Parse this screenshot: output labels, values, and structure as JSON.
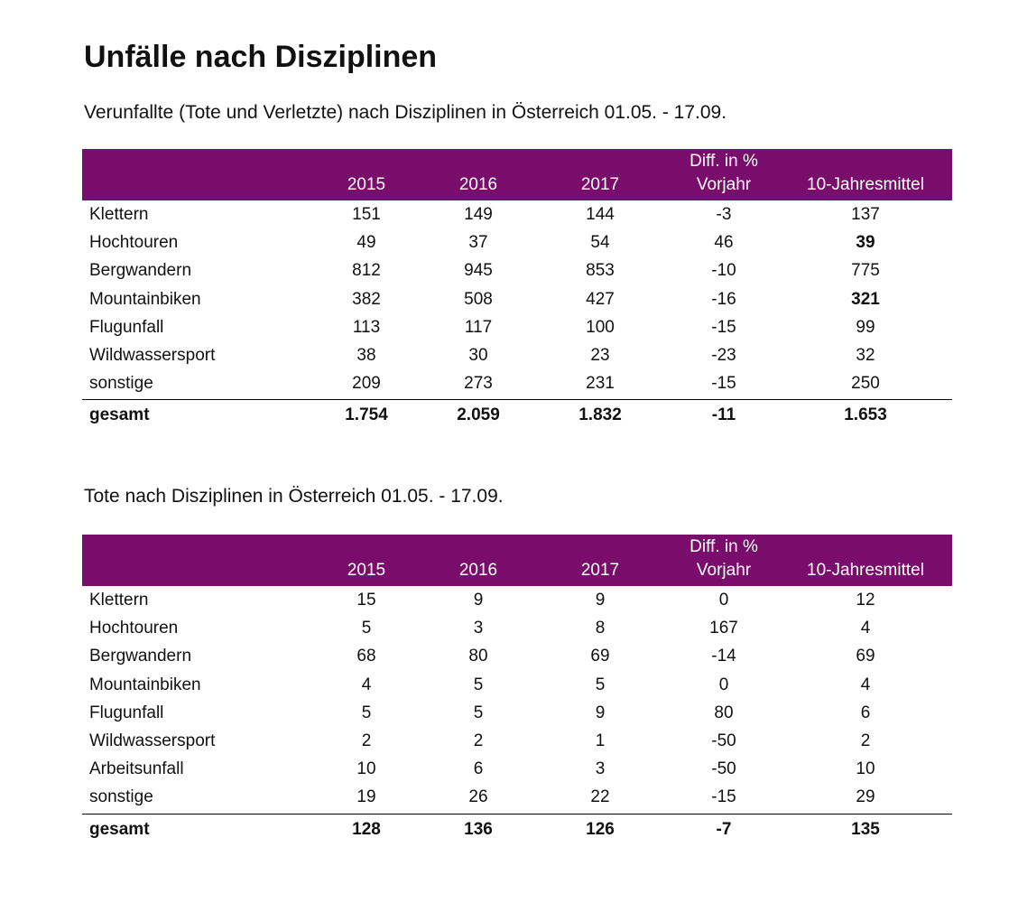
{
  "title": "Unfälle nach Disziplinen",
  "tables": [
    {
      "heading": "Verunfallte (Tote und Verletzte) nach Disziplinen in Österreich 01.05. - 17.09.",
      "columns": [
        [
          "2015"
        ],
        [
          "2016"
        ],
        [
          "2017"
        ],
        [
          "Diff. in %",
          "Vorjahr"
        ],
        [
          "10-Jahresmittel"
        ]
      ],
      "rows": [
        {
          "label": "Klettern",
          "cells": [
            "151",
            "149",
            "144",
            "-3",
            "137"
          ]
        },
        {
          "label": "Hochtouren",
          "cells": [
            "49",
            "37",
            "54",
            "46",
            "39"
          ]
        },
        {
          "label": "Bergwandern",
          "cells": [
            "812",
            "945",
            "853",
            "-10",
            "775"
          ]
        },
        {
          "label": "Mountainbiken",
          "cells": [
            "382",
            "508",
            "427",
            "-16",
            "321"
          ]
        },
        {
          "label": "Flugunfall",
          "cells": [
            "113",
            "117",
            "100",
            "-15",
            "99"
          ]
        },
        {
          "label": "Wildwassersport",
          "cells": [
            "38",
            "30",
            "23",
            "-23",
            "32"
          ]
        },
        {
          "label": "sonstige",
          "cells": [
            "209",
            "273",
            "231",
            "-15",
            "250"
          ]
        }
      ],
      "total": {
        "label": "gesamt",
        "cells": [
          "1.754",
          "2.059",
          "1.832",
          "-11",
          "1.653"
        ]
      },
      "bold_cells": [
        [
          1,
          4
        ],
        [
          3,
          4
        ]
      ]
    },
    {
      "heading": "Tote nach Disziplinen in Österreich 01.05. - 17.09.",
      "columns": [
        [
          "2015"
        ],
        [
          "2016"
        ],
        [
          "2017"
        ],
        [
          "Diff. in %",
          "Vorjahr"
        ],
        [
          "10-Jahresmittel"
        ]
      ],
      "rows": [
        {
          "label": "Klettern",
          "cells": [
            "15",
            "9",
            "9",
            "0",
            "12"
          ]
        },
        {
          "label": "Hochtouren",
          "cells": [
            "5",
            "3",
            "8",
            "167",
            "4"
          ]
        },
        {
          "label": "Bergwandern",
          "cells": [
            "68",
            "80",
            "69",
            "-14",
            "69"
          ]
        },
        {
          "label": "Mountainbiken",
          "cells": [
            "4",
            "5",
            "5",
            "0",
            "4"
          ]
        },
        {
          "label": "Flugunfall",
          "cells": [
            "5",
            "5",
            "9",
            "80",
            "6"
          ]
        },
        {
          "label": "Wildwassersport",
          "cells": [
            "2",
            "2",
            "1",
            "-50",
            "2"
          ]
        },
        {
          "label": "Arbeitsunfall",
          "cells": [
            "10",
            "6",
            "3",
            "-50",
            "10"
          ]
        },
        {
          "label": "sonstige",
          "cells": [
            "19",
            "26",
            "22",
            "-15",
            "29"
          ]
        }
      ],
      "total": {
        "label": "gesamt",
        "cells": [
          "128",
          "136",
          "126",
          "-7",
          "135"
        ]
      },
      "bold_cells": []
    }
  ]
}
